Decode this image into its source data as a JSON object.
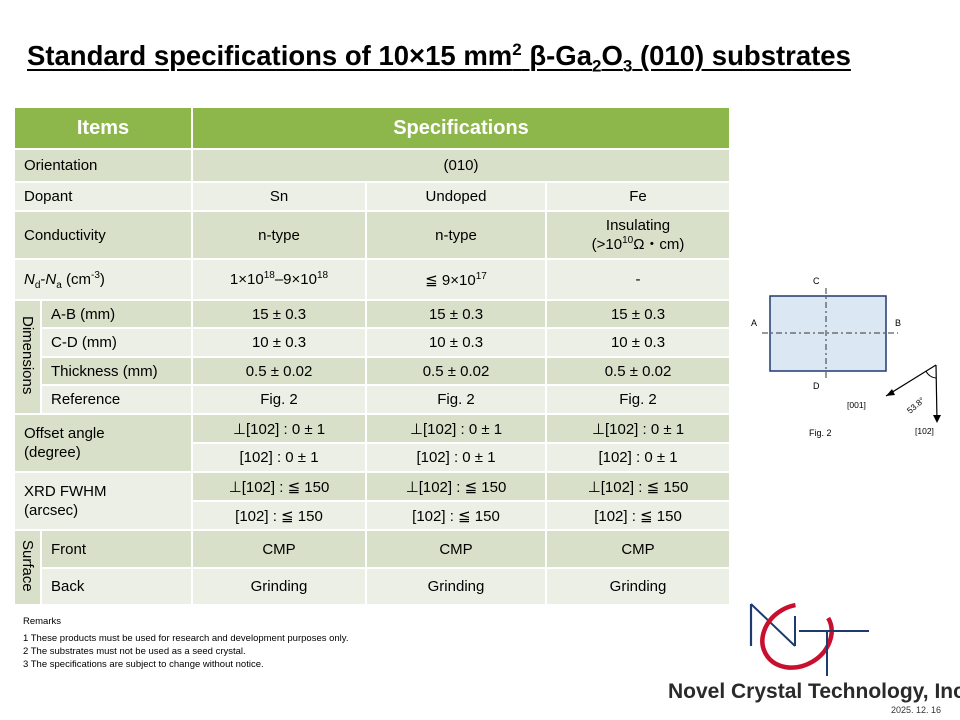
{
  "title": {
    "prefix": "Standard specifications of 10×15 mm",
    "sup": "2",
    "mid1": " β-Ga",
    "sub1": "2",
    "mid2": "O",
    "sub2": "3",
    "suffix": " (010) substrates"
  },
  "table": {
    "header_items": "Items",
    "header_specs": "Specifications",
    "orientation_label": "Orientation",
    "orientation_value": "(010)",
    "dopant_label": "Dopant",
    "dopants": [
      "Sn",
      "Undoped",
      "Fe"
    ],
    "conductivity_label": "Conductivity",
    "conductivity": [
      "n-type",
      "n-type"
    ],
    "conductivity_fe_line1": "Insulating",
    "conductivity_fe_line2_pre": "(>10",
    "conductivity_fe_line2_sup": "10",
    "conductivity_fe_line2_post": "Ω・cm)",
    "ndna_label": {
      "n": "N",
      "d": "d",
      "dash": "-",
      "n2": "N",
      "a": "a",
      "unit_pre": " (cm",
      "unit_sup": "-3",
      "unit_post": ")"
    },
    "ndna_sn": {
      "a": "1×10",
      "a_sup": "18",
      "b": "–9×10",
      "b_sup": "18"
    },
    "ndna_undoped": {
      "a": "≦ 9×10",
      "a_sup": "17"
    },
    "ndna_fe": "-",
    "dimensions_group": "Dimensions",
    "ab_label": "A-B (mm)",
    "ab": [
      "15 ± 0.3",
      "15 ± 0.3",
      "15 ± 0.3"
    ],
    "cd_label": "C-D (mm)",
    "cd": [
      "10 ± 0.3",
      "10 ± 0.3",
      "10 ± 0.3"
    ],
    "thickness_label": "Thickness (mm)",
    "thickness": [
      "0.5 ± 0.02",
      "0.5 ± 0.02",
      "0.5 ± 0.02"
    ],
    "reference_label": "Reference",
    "reference": [
      "Fig. 2",
      "Fig. 2",
      "Fig. 2"
    ],
    "offset_label_1": "Offset angle",
    "offset_label_2": "(degree)",
    "offset_perp": [
      "⊥[102] : 0 ± 1",
      "⊥[102] : 0 ± 1",
      "⊥[102] : 0 ± 1"
    ],
    "offset_par": [
      "[102] : 0 ± 1",
      "[102] : 0 ± 1",
      "[102] : 0 ± 1"
    ],
    "xrd_label_1": "XRD FWHM",
    "xrd_label_2": "(arcsec)",
    "xrd_perp": [
      "⊥[102] : ≦ 150",
      "⊥[102] : ≦ 150",
      "⊥[102] : ≦ 150"
    ],
    "xrd_par": [
      "[102] : ≦ 150",
      "[102] : ≦ 150",
      "[102] : ≦ 150"
    ],
    "surface_group": "Surface",
    "front_label": "Front",
    "front": [
      "CMP",
      "CMP",
      "CMP"
    ],
    "back_label": "Back",
    "back": [
      "Grinding",
      "Grinding",
      "Grinding"
    ]
  },
  "remarks": {
    "title": "Remarks",
    "items": [
      "1 These products must be used for research and development purposes only.",
      "2 The substrates must not be used as a seed crystal.",
      "3 The specifications are subject to change without notice."
    ]
  },
  "figure": {
    "label_c": "C",
    "label_a": "A",
    "label_b": "B",
    "label_d": "D",
    "dir_001": "[001]",
    "dir_102": "[102]",
    "angle": "53.8°",
    "caption": "Fig. 2"
  },
  "company": "Novel Crystal Technology, Inc.",
  "date": "2025. 12. 16",
  "colors": {
    "header_green": "#8db74a",
    "row_dark": "#d8e0c9",
    "row_light": "#ecefe5",
    "logo_red": "#c8102e",
    "logo_navy": "#1f3a6e"
  }
}
